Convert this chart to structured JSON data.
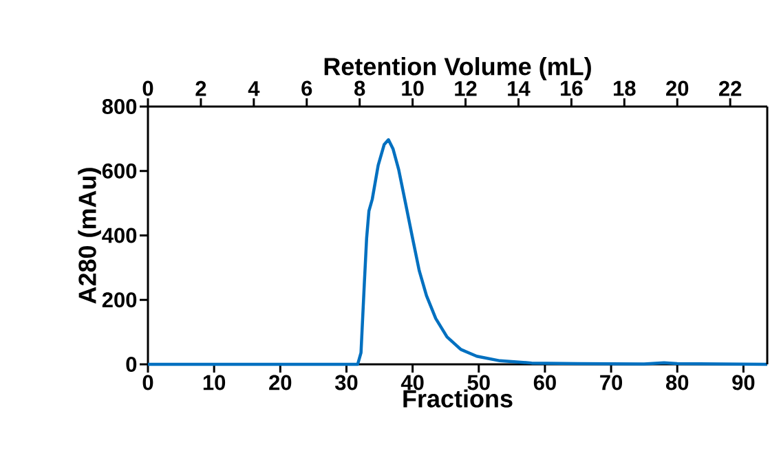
{
  "chart_data": {
    "type": "line",
    "xlabel": "Fractions",
    "ylabel": "A280 (mAu)",
    "x2label": "Retention Volume (mL)",
    "xlim": [
      0,
      93.6
    ],
    "xticks": [
      0,
      10,
      20,
      30,
      40,
      50,
      60,
      70,
      80,
      90
    ],
    "x2lim": [
      0,
      23.4
    ],
    "x2ticks": [
      0,
      2,
      4,
      6,
      8,
      10,
      12,
      14,
      16,
      18,
      20,
      22
    ],
    "ylim": [
      0,
      800
    ],
    "yticks": [
      0,
      200,
      400,
      600,
      800
    ],
    "marker": "none",
    "line_style": "solid",
    "series": [
      {
        "color": "#0070c0",
        "x": [
          0,
          10,
          20,
          31.7,
          32.2,
          32.7,
          33.05,
          33.4,
          33.9,
          34.8,
          35.7,
          36.35,
          37.05,
          37.9,
          38.96,
          40.0,
          41.0,
          42.1,
          43.5,
          45.2,
          47.3,
          49.7,
          53.2,
          58,
          65,
          75,
          78,
          80,
          93.6
        ],
        "values": [
          0,
          0,
          0,
          0,
          36,
          249,
          391,
          476,
          512,
          618,
          682,
          697,
          668,
          604,
          497,
          391,
          291,
          213,
          142,
          85,
          46,
          25,
          11,
          4,
          2,
          1,
          5,
          2,
          0
        ]
      }
    ]
  }
}
